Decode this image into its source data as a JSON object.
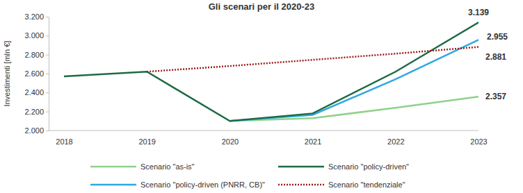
{
  "chart_data": {
    "type": "line",
    "title": "Gli scenari per il 2020-23",
    "y_label": "Investimenti [mln €]",
    "categories": [
      "2018",
      "2019",
      "2020",
      "2021",
      "2022",
      "2023"
    ],
    "ylim": [
      2000,
      3200
    ],
    "yticks": [
      {
        "value": 2000,
        "label": "2.000"
      },
      {
        "value": 2200,
        "label": "2.200"
      },
      {
        "value": 2400,
        "label": "2.400"
      },
      {
        "value": 2600,
        "label": "2.600"
      },
      {
        "value": 2800,
        "label": "2.800"
      },
      {
        "value": 3000,
        "label": "3.000"
      },
      {
        "value": 3200,
        "label": "3.200"
      }
    ],
    "grid": false,
    "legend": "bottom",
    "series": [
      {
        "name": "Scenario \"as-is\"",
        "color": "#8fd18a",
        "line_style": "solid",
        "values": [
          null,
          null,
          2100,
          2130,
          2240,
          2357
        ],
        "value_labels": [
          null,
          null,
          null,
          null,
          null,
          "2.357"
        ]
      },
      {
        "name": "Scenario \"policy-driven (PNRR, CB)\"",
        "color": "#2fa8df",
        "line_style": "solid",
        "values": [
          null,
          null,
          2100,
          2165,
          2540,
          2955
        ],
        "value_labels": [
          null,
          null,
          null,
          null,
          null,
          "2.955"
        ]
      },
      {
        "name": "Scenario \"policy-driven\"",
        "color": "#1d6a45",
        "line_style": "solid",
        "values": [
          2570,
          2620,
          2100,
          2180,
          2620,
          3139
        ],
        "value_labels": [
          null,
          null,
          null,
          null,
          null,
          "3.139"
        ]
      },
      {
        "name": "Scenario \"tendenziale\"",
        "color": "#9b1c1c",
        "line_style": "dotted",
        "values": [
          null,
          2620,
          2680,
          2745,
          2810,
          2881
        ],
        "value_labels": [
          null,
          null,
          null,
          null,
          null,
          "2.881"
        ]
      }
    ]
  }
}
